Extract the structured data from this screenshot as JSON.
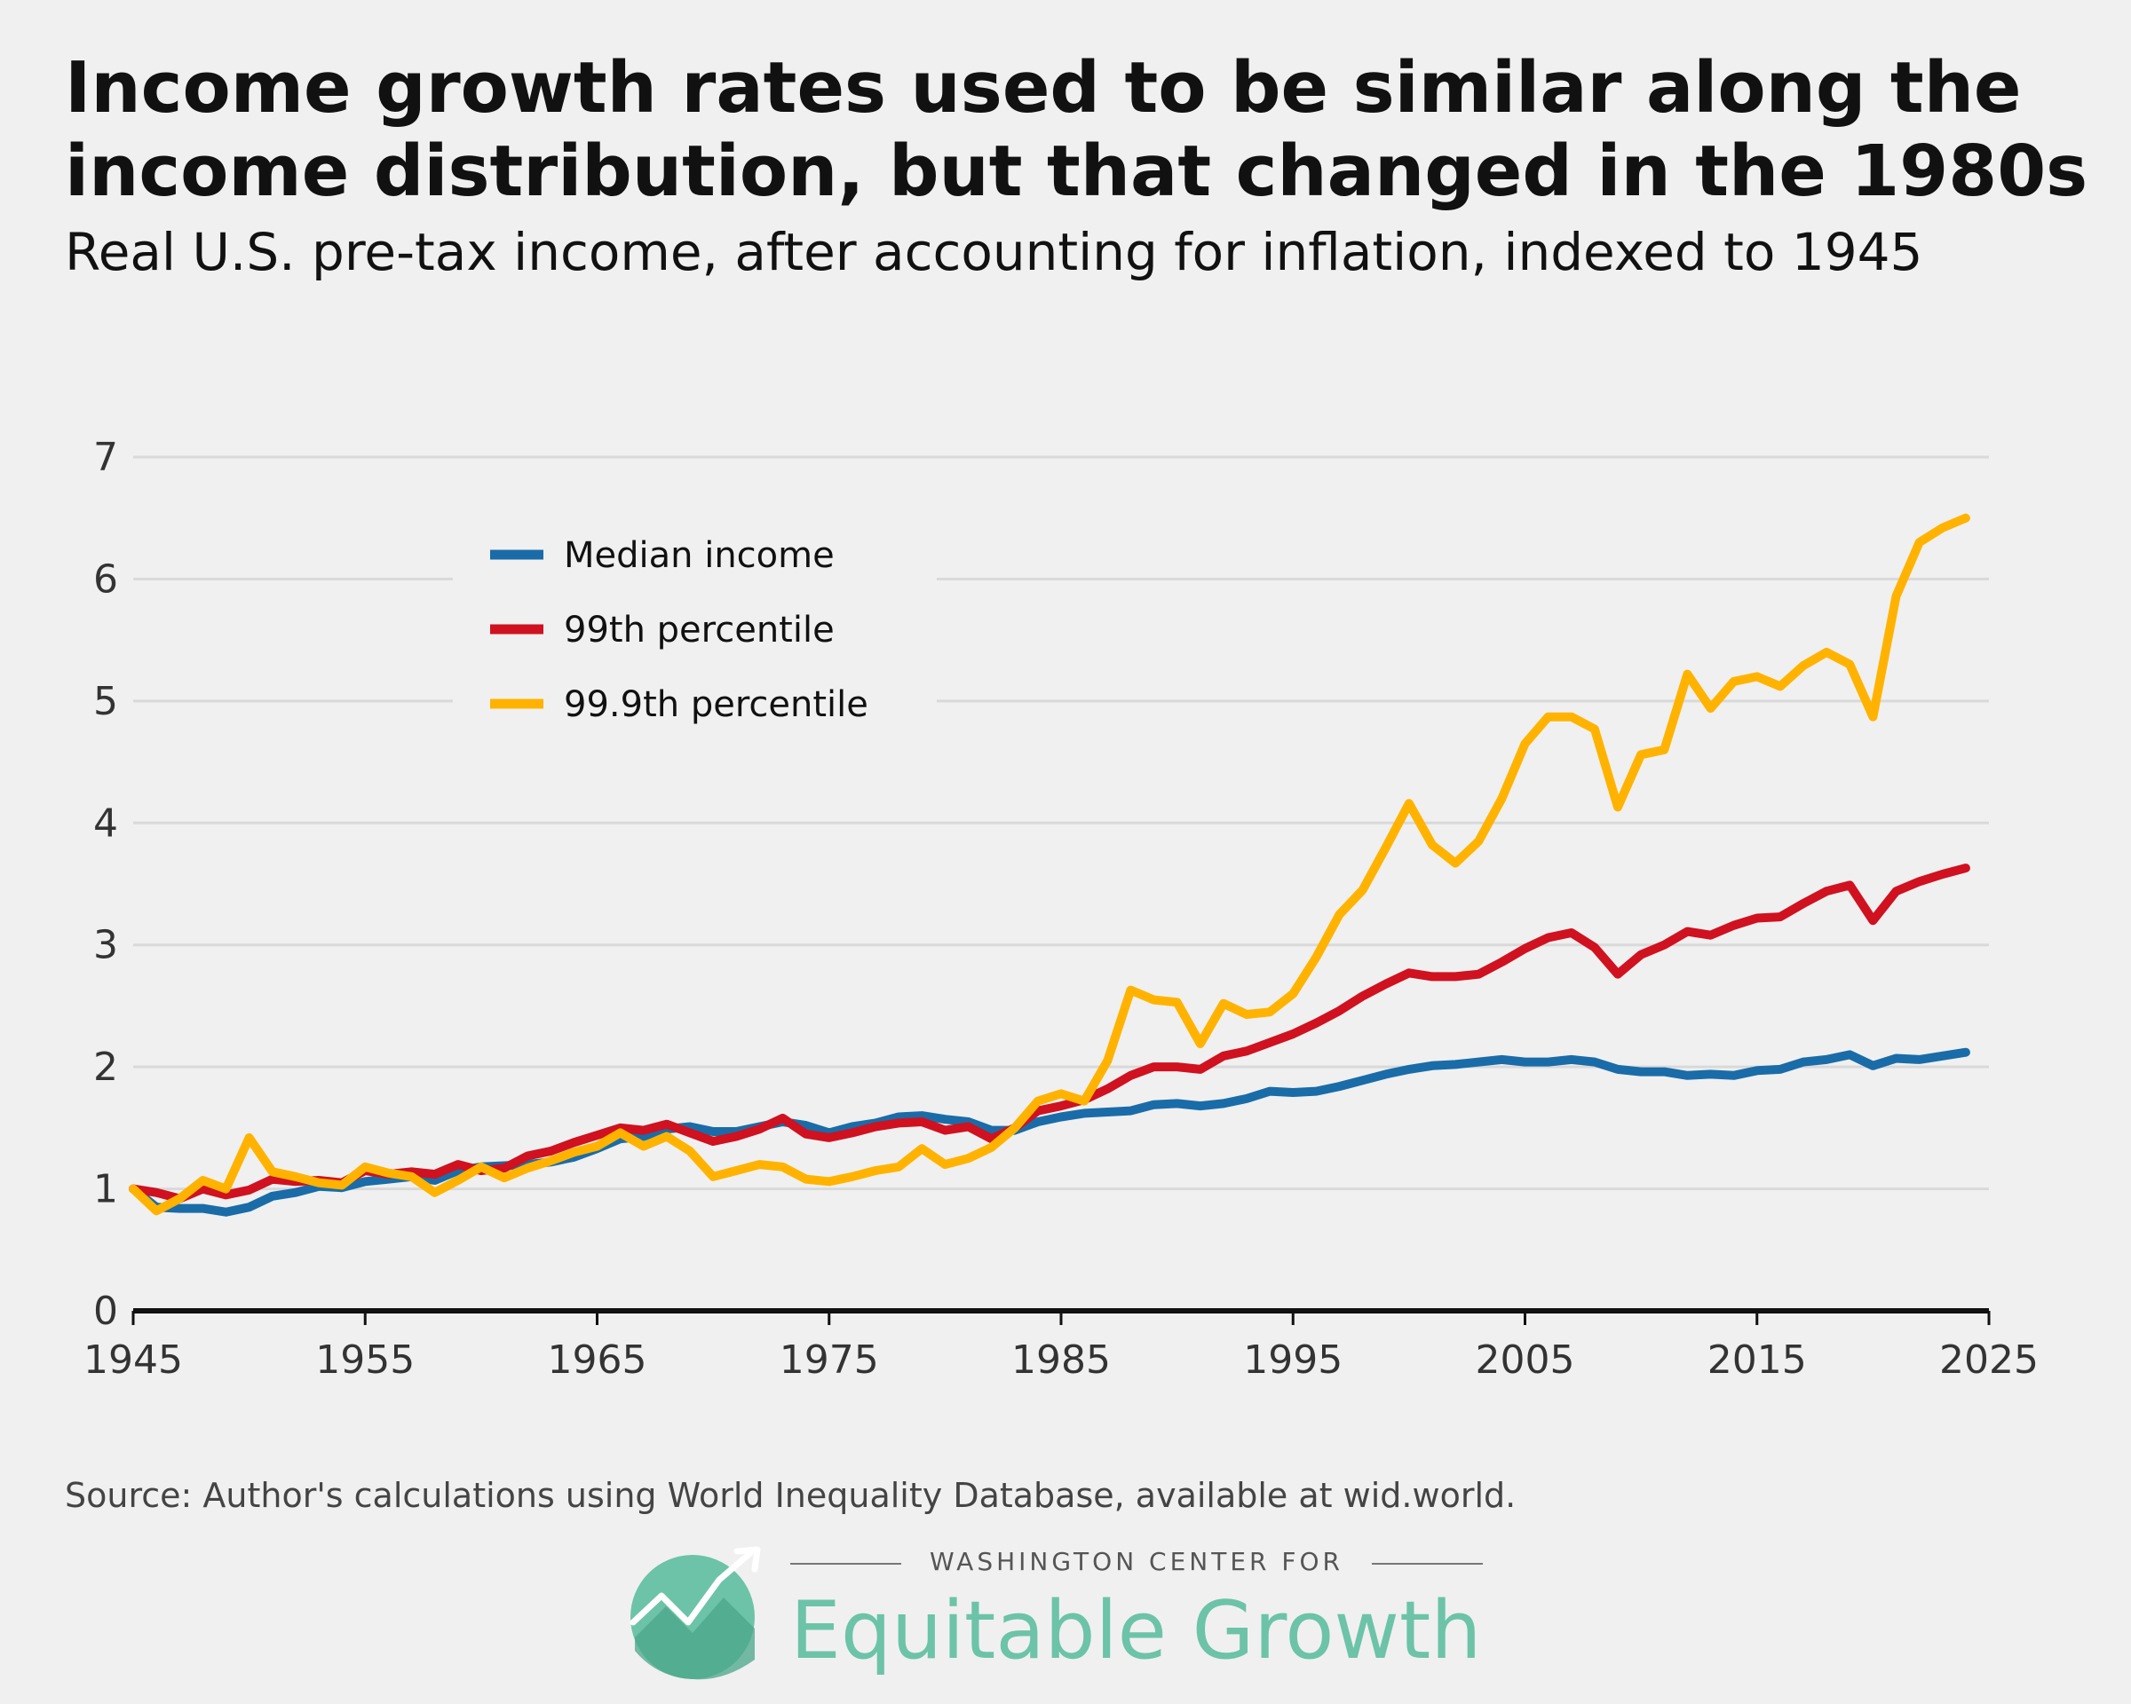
{
  "title": "Income growth rates used to be similar along the income distribution, but that changed in the 1980s",
  "subtitle": "Real U.S. pre-tax income, after accounting for inflation, indexed to 1945",
  "source": "Source: Author's calculations using World Inequality Database, available at wid.world.",
  "logo": {
    "org_line": "WASHINGTON CENTER FOR",
    "name": "Equitable Growth"
  },
  "colors": {
    "median": "#1a6ca8",
    "p99": "#d0111f",
    "p999": "#ffb300",
    "grid": "#d9d9d9",
    "axis": "#111111",
    "logo_green": "#6cc3a8"
  },
  "chart_data": {
    "type": "line",
    "title": "",
    "xlabel": "",
    "ylabel": "",
    "xlim": [
      1945,
      2025
    ],
    "ylim": [
      0,
      7
    ],
    "x_ticks": [
      1945,
      1955,
      1965,
      1975,
      1985,
      1995,
      2005,
      2015,
      2025
    ],
    "y_ticks": [
      0,
      1,
      2,
      3,
      4,
      5,
      6,
      7
    ],
    "grid": "horizontal",
    "legend_position": "top-left",
    "x": [
      1945,
      1946,
      1947,
      1948,
      1949,
      1950,
      1951,
      1952,
      1953,
      1954,
      1955,
      1956,
      1957,
      1958,
      1959,
      1960,
      1961,
      1962,
      1963,
      1964,
      1965,
      1966,
      1967,
      1968,
      1969,
      1970,
      1971,
      1972,
      1973,
      1974,
      1975,
      1976,
      1977,
      1978,
      1979,
      1980,
      1981,
      1982,
      1983,
      1984,
      1985,
      1986,
      1987,
      1988,
      1989,
      1990,
      1991,
      1992,
      1993,
      1994,
      1995,
      1996,
      1997,
      1998,
      1999,
      2000,
      2001,
      2002,
      2003,
      2004,
      2005,
      2006,
      2007,
      2008,
      2009,
      2010,
      2011,
      2012,
      2013,
      2014,
      2015,
      2016,
      2017,
      2018,
      2019,
      2020,
      2021,
      2022,
      2023,
      2024
    ],
    "series": [
      {
        "name": "Median income",
        "color": "#1a6ca8",
        "values": [
          1.0,
          0.85,
          0.84,
          0.84,
          0.81,
          0.85,
          0.94,
          0.97,
          1.02,
          1.01,
          1.06,
          1.08,
          1.1,
          1.07,
          1.15,
          1.18,
          1.19,
          1.2,
          1.22,
          1.26,
          1.33,
          1.41,
          1.43,
          1.49,
          1.51,
          1.47,
          1.47,
          1.51,
          1.55,
          1.52,
          1.46,
          1.51,
          1.54,
          1.59,
          1.6,
          1.57,
          1.55,
          1.48,
          1.48,
          1.55,
          1.59,
          1.62,
          1.63,
          1.64,
          1.69,
          1.7,
          1.68,
          1.7,
          1.74,
          1.8,
          1.79,
          1.8,
          1.84,
          1.89,
          1.94,
          1.98,
          2.01,
          2.02,
          2.04,
          2.06,
          2.04,
          2.04,
          2.06,
          2.04,
          1.98,
          1.96,
          1.96,
          1.93,
          1.94,
          1.93,
          1.97,
          1.98,
          2.04,
          2.06,
          2.1,
          2.01,
          2.07,
          2.06,
          2.09,
          2.12
        ]
      },
      {
        "name": "99th percentile",
        "color": "#d0111f",
        "values": [
          1.0,
          0.97,
          0.92,
          1.0,
          0.95,
          0.99,
          1.08,
          1.06,
          1.07,
          1.05,
          1.15,
          1.12,
          1.14,
          1.12,
          1.2,
          1.15,
          1.17,
          1.27,
          1.31,
          1.38,
          1.44,
          1.5,
          1.48,
          1.53,
          1.46,
          1.39,
          1.43,
          1.49,
          1.58,
          1.45,
          1.42,
          1.46,
          1.51,
          1.54,
          1.55,
          1.48,
          1.51,
          1.41,
          1.5,
          1.64,
          1.68,
          1.73,
          1.82,
          1.93,
          2.0,
          2.0,
          1.98,
          2.09,
          2.13,
          2.2,
          2.27,
          2.36,
          2.46,
          2.58,
          2.68,
          2.77,
          2.74,
          2.74,
          2.76,
          2.86,
          2.97,
          3.06,
          3.1,
          2.98,
          2.76,
          2.92,
          3.0,
          3.11,
          3.08,
          3.16,
          3.22,
          3.23,
          3.34,
          3.44,
          3.49,
          3.2,
          3.44,
          3.52,
          3.58,
          3.63
        ]
      },
      {
        "name": "99.9th percentile",
        "color": "#ffb300",
        "values": [
          1.0,
          0.82,
          0.92,
          1.07,
          1.0,
          1.42,
          1.14,
          1.1,
          1.05,
          1.03,
          1.18,
          1.13,
          1.1,
          0.97,
          1.07,
          1.18,
          1.09,
          1.17,
          1.23,
          1.3,
          1.35,
          1.46,
          1.35,
          1.43,
          1.31,
          1.1,
          1.15,
          1.2,
          1.18,
          1.08,
          1.06,
          1.1,
          1.15,
          1.18,
          1.33,
          1.2,
          1.25,
          1.34,
          1.5,
          1.72,
          1.78,
          1.72,
          2.05,
          2.63,
          2.55,
          2.53,
          2.19,
          2.52,
          2.43,
          2.45,
          2.6,
          2.9,
          3.25,
          3.45,
          3.8,
          4.16,
          3.82,
          3.67,
          3.85,
          4.2,
          4.65,
          4.87,
          4.87,
          4.77,
          4.13,
          4.56,
          4.6,
          5.22,
          4.94,
          5.16,
          5.2,
          5.12,
          5.29,
          5.4,
          5.3,
          4.87,
          5.86,
          6.3,
          6.42,
          6.5
        ]
      }
    ]
  }
}
